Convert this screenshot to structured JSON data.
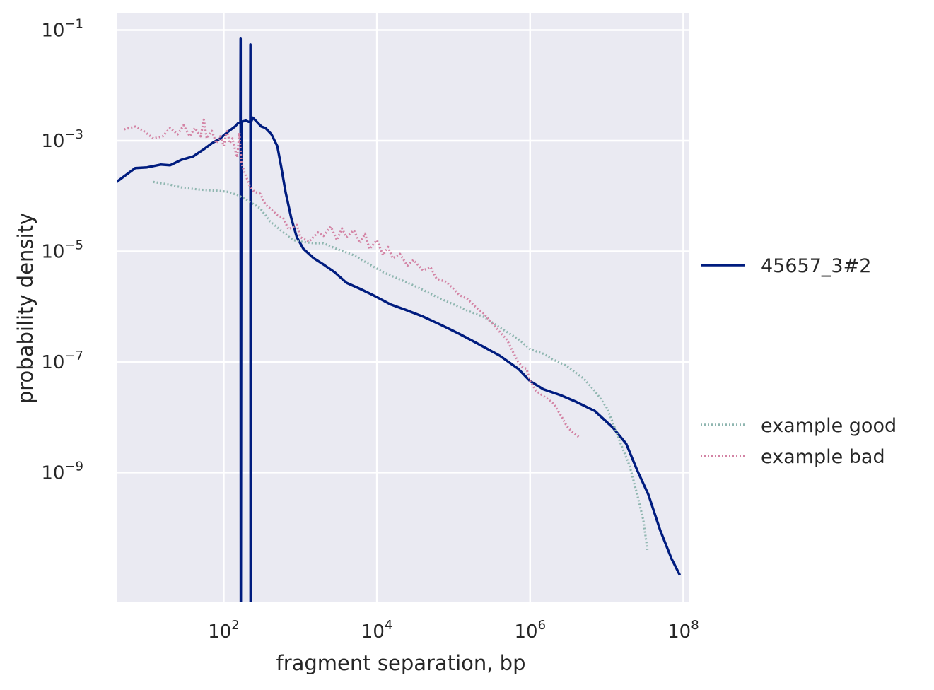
{
  "chart_data": {
    "type": "line",
    "xlabel": "fragment separation, bp",
    "ylabel": "probability density",
    "xscale": "log",
    "yscale": "log",
    "xlim": [
      4,
      120000000
    ],
    "ylim": [
      4.5e-12,
      0.2
    ],
    "grid": true,
    "legend_position": "right",
    "colors": {
      "background": "#EAEAF2",
      "grid": "#FFFFFF",
      "sample": "#001C7F",
      "good": "#8FB6B0",
      "bad": "#D383A4"
    },
    "x_ticks": [
      {
        "value": 100,
        "base": "10",
        "exp": "2"
      },
      {
        "value": 10000,
        "base": "10",
        "exp": "4"
      },
      {
        "value": 1000000,
        "base": "10",
        "exp": "6"
      },
      {
        "value": 100000000,
        "base": "10",
        "exp": "8"
      }
    ],
    "y_ticks": [
      {
        "value": 0.1,
        "base": "10",
        "exp": "−1"
      },
      {
        "value": 0.001,
        "base": "10",
        "exp": "−3"
      },
      {
        "value": 1e-05,
        "base": "10",
        "exp": "−5"
      },
      {
        "value": 1e-07,
        "base": "10",
        "exp": "−7"
      },
      {
        "value": 1e-09,
        "base": "10",
        "exp": "−9"
      }
    ],
    "series": [
      {
        "name": "45657_3#2",
        "style": "solid",
        "color": "#001C7F",
        "points": [
          [
            4,
            0.00018
          ],
          [
            7,
            0.00032
          ],
          [
            10,
            0.00033
          ],
          [
            15,
            0.00037
          ],
          [
            20,
            0.00036
          ],
          [
            28,
            0.00045
          ],
          [
            40,
            0.00052
          ],
          [
            55,
            0.0007
          ],
          [
            70,
            0.0009
          ],
          [
            90,
            0.0011
          ],
          [
            110,
            0.0014
          ],
          [
            140,
            0.0018
          ],
          [
            155,
            0.0021
          ],
          [
            165,
            0.0021
          ],
          [
            166,
            0.07
          ],
          [
            167,
            1e-12
          ],
          [
            170,
            0.0022
          ],
          [
            195,
            0.0023
          ],
          [
            210,
            0.0022
          ],
          [
            222,
            0.0022
          ],
          [
            223,
            0.055
          ],
          [
            224,
            1e-12
          ],
          [
            228,
            0.0022
          ],
          [
            240,
            0.0026
          ],
          [
            270,
            0.0022
          ],
          [
            310,
            0.0018
          ],
          [
            350,
            0.0017
          ],
          [
            420,
            0.0013
          ],
          [
            500,
            0.0008
          ],
          [
            560,
            0.00035
          ],
          [
            640,
            0.00012
          ],
          [
            760,
            4e-05
          ],
          [
            900,
            1.8e-05
          ],
          [
            1100,
            1.1e-05
          ],
          [
            1500,
            7.5e-06
          ],
          [
            2000,
            5.8e-06
          ],
          [
            2800,
            4.2e-06
          ],
          [
            4000,
            2.7e-06
          ],
          [
            6000,
            2.1e-06
          ],
          [
            9000,
            1.6e-06
          ],
          [
            15000,
            1.1e-06
          ],
          [
            25000,
            8.5e-07
          ],
          [
            40000,
            6.6e-07
          ],
          [
            70000,
            4.6e-07
          ],
          [
            120000,
            3.2e-07
          ],
          [
            200000,
            2.2e-07
          ],
          [
            400000,
            1.3e-07
          ],
          [
            700000,
            7.5e-08
          ],
          [
            1000000,
            4.5e-08
          ],
          [
            1500000,
            3.2e-08
          ],
          [
            2500000,
            2.5e-08
          ],
          [
            4000000,
            1.9e-08
          ],
          [
            7000000,
            1.3e-08
          ],
          [
            12000000,
            6.5e-09
          ],
          [
            18000000,
            3.3e-09
          ],
          [
            25000000,
            1.1e-09
          ],
          [
            35000000,
            4e-10
          ],
          [
            50000000,
            9e-11
          ],
          [
            70000000,
            2.8e-11
          ],
          [
            90000000,
            1.4e-11
          ]
        ]
      },
      {
        "name": "example good",
        "style": "dotted",
        "color": "#8FB6B0",
        "points": [
          [
            12,
            0.00018
          ],
          [
            20,
            0.00016
          ],
          [
            30,
            0.00014
          ],
          [
            50,
            0.00013
          ],
          [
            80,
            0.000125
          ],
          [
            110,
            0.00012
          ],
          [
            150,
            0.000105
          ],
          [
            200,
            8.5e-05
          ],
          [
            300,
            6e-05
          ],
          [
            400,
            3.5e-05
          ],
          [
            600,
            2.2e-05
          ],
          [
            800,
            1.6e-05
          ],
          [
            1000,
            1.5e-05
          ],
          [
            1500,
            1.4e-05
          ],
          [
            2000,
            1.4e-05
          ],
          [
            3000,
            1.1e-05
          ],
          [
            5000,
            8.5e-06
          ],
          [
            8000,
            5.8e-06
          ],
          [
            12000,
            4.2e-06
          ],
          [
            20000,
            3.1e-06
          ],
          [
            35000,
            2.2e-06
          ],
          [
            60000,
            1.5e-06
          ],
          [
            100000,
            1.1e-06
          ],
          [
            150000,
            8.5e-07
          ],
          [
            250000,
            6.5e-07
          ],
          [
            400000,
            4.2e-07
          ],
          [
            700000,
            2.6e-07
          ],
          [
            1000000,
            1.7e-07
          ],
          [
            1500000,
            1.4e-07
          ],
          [
            2000000,
            1.1e-07
          ],
          [
            3000000,
            8.5e-08
          ],
          [
            5000000,
            5e-08
          ],
          [
            7000000,
            3e-08
          ],
          [
            10000000,
            1.5e-08
          ],
          [
            12000000,
            8e-09
          ],
          [
            15000000,
            3.5e-09
          ],
          [
            20000000,
            1.3e-09
          ],
          [
            25000000,
            4e-10
          ],
          [
            30000000,
            1.4e-10
          ],
          [
            34000000,
            4e-11
          ]
        ]
      },
      {
        "name": "example bad",
        "style": "dotted",
        "color": "#D383A4",
        "points": [
          [
            5,
            0.0016
          ],
          [
            7,
            0.0018
          ],
          [
            9,
            0.0015
          ],
          [
            12,
            0.0011
          ],
          [
            16,
            0.0012
          ],
          [
            20,
            0.0017
          ],
          [
            25,
            0.0013
          ],
          [
            30,
            0.0019
          ],
          [
            36,
            0.0012
          ],
          [
            42,
            0.0017
          ],
          [
            50,
            0.0012
          ],
          [
            55,
            0.0024
          ],
          [
            60,
            0.0011
          ],
          [
            70,
            0.0015
          ],
          [
            80,
            0.0009
          ],
          [
            90,
            0.0012
          ],
          [
            100,
            0.0008
          ],
          [
            110,
            0.0016
          ],
          [
            120,
            0.0009
          ],
          [
            130,
            0.0011
          ],
          [
            140,
            0.0007
          ],
          [
            150,
            0.0005
          ],
          [
            160,
            0.0014
          ],
          [
            170,
            0.0004
          ],
          [
            190,
            0.00025
          ],
          [
            220,
            0.00015
          ],
          [
            250,
            0.00012
          ],
          [
            300,
            0.00011
          ],
          [
            350,
            7e-05
          ],
          [
            400,
            6e-05
          ],
          [
            500,
            4.5e-05
          ],
          [
            600,
            4e-05
          ],
          [
            700,
            2.5e-05
          ],
          [
            900,
            3e-05
          ],
          [
            1000,
            1.8e-05
          ],
          [
            1300,
            1.5e-05
          ],
          [
            1700,
            2.2e-05
          ],
          [
            2000,
            1.9e-05
          ],
          [
            2500,
            2.8e-05
          ],
          [
            3000,
            1.6e-05
          ],
          [
            3500,
            2.6e-05
          ],
          [
            4000,
            1.8e-05
          ],
          [
            5000,
            2.4e-05
          ],
          [
            6000,
            1.4e-05
          ],
          [
            7000,
            2.1e-05
          ],
          [
            8000,
            1.1e-05
          ],
          [
            10000,
            1.6e-05
          ],
          [
            12000,
            8.5e-06
          ],
          [
            14000,
            1.2e-05
          ],
          [
            16000,
            7.5e-06
          ],
          [
            20000,
            9e-06
          ],
          [
            25000,
            5.5e-06
          ],
          [
            30000,
            7e-06
          ],
          [
            40000,
            4.5e-06
          ],
          [
            50000,
            5.2e-06
          ],
          [
            60000,
            3.2e-06
          ],
          [
            80000,
            2.8e-06
          ],
          [
            100000,
            2.1e-06
          ],
          [
            120000,
            1.6e-06
          ],
          [
            150000,
            1.4e-06
          ],
          [
            200000,
            9.5e-07
          ],
          [
            250000,
            7.5e-07
          ],
          [
            300000,
            5.5e-07
          ],
          [
            400000,
            3.5e-07
          ],
          [
            500000,
            2.5e-07
          ],
          [
            600000,
            1.5e-07
          ],
          [
            700000,
            1e-07
          ],
          [
            800000,
            8e-08
          ],
          [
            900000,
            7.5e-08
          ],
          [
            1000000,
            4.5e-08
          ],
          [
            1200000,
            3e-08
          ],
          [
            1500000,
            2.4e-08
          ],
          [
            2000000,
            1.8e-08
          ],
          [
            2500000,
            1.1e-08
          ],
          [
            3000000,
            7e-09
          ],
          [
            3500000,
            5.5e-09
          ],
          [
            4500000,
            4.2e-09
          ]
        ]
      }
    ]
  }
}
